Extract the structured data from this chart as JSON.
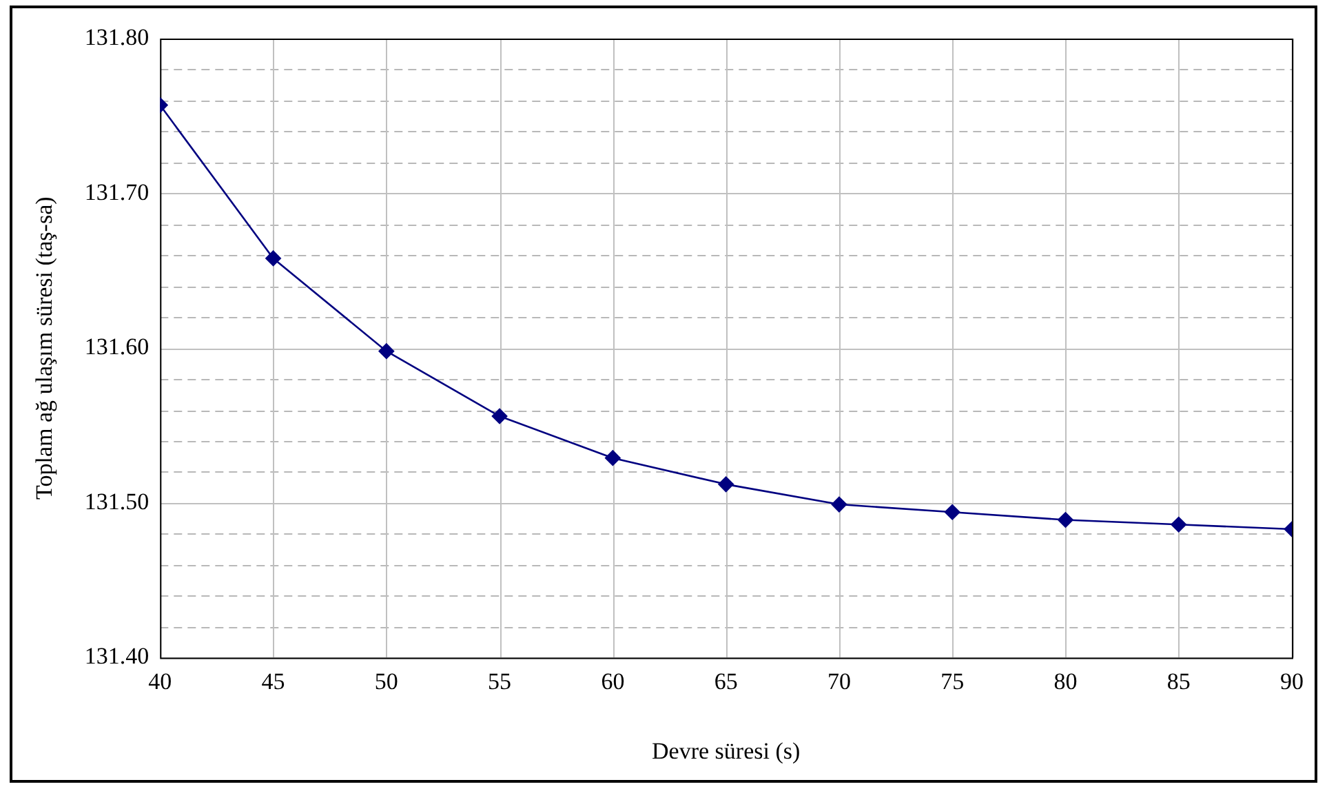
{
  "chart_data": {
    "type": "line",
    "xlabel": "Devre süresi (s)",
    "ylabel": "Toplam ağ ulaşım süresi (taş-sa)",
    "x": [
      40,
      45,
      50,
      55,
      60,
      65,
      70,
      75,
      80,
      85,
      90
    ],
    "series": [
      {
        "color": "#000080",
        "values": [
          131.757,
          131.658,
          131.598,
          131.556,
          131.529,
          131.512,
          131.499,
          131.494,
          131.489,
          131.486,
          131.483
        ]
      }
    ],
    "xlim": [
      40,
      90
    ],
    "xticks": [
      40,
      45,
      50,
      55,
      60,
      65,
      70,
      75,
      80,
      85,
      90
    ],
    "ylim": [
      131.4,
      131.8
    ],
    "yticks": [
      {
        "value": 131.4,
        "label": "131.40"
      },
      {
        "value": 131.42,
        "label": null
      },
      {
        "value": 131.44,
        "label": null
      },
      {
        "value": 131.46,
        "label": null
      },
      {
        "value": 131.48,
        "label": null
      },
      {
        "value": 131.5,
        "label": "131.50"
      },
      {
        "value": 131.52,
        "label": null
      },
      {
        "value": 131.54,
        "label": null
      },
      {
        "value": 131.56,
        "label": null
      },
      {
        "value": 131.58,
        "label": null
      },
      {
        "value": 131.6,
        "label": "131.60"
      },
      {
        "value": 131.62,
        "label": null
      },
      {
        "value": 131.64,
        "label": null
      },
      {
        "value": 131.66,
        "label": null
      },
      {
        "value": 131.68,
        "label": null
      },
      {
        "value": 131.7,
        "label": "131.70"
      },
      {
        "value": 131.72,
        "label": null
      },
      {
        "value": 131.74,
        "label": null
      },
      {
        "value": 131.76,
        "label": null
      },
      {
        "value": 131.78,
        "label": null
      },
      {
        "value": 131.8,
        "label": "131.80"
      }
    ],
    "grid": true,
    "legend": false,
    "marker": "diamond",
    "line_style": "solid"
  }
}
